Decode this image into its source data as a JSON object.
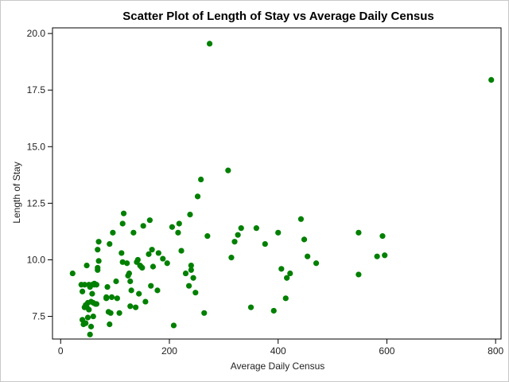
{
  "chart_data": {
    "type": "scatter",
    "title": "Scatter Plot of Length of Stay vs Average Daily Census",
    "xlabel": "Average Daily Census",
    "ylabel": "Length of Stay",
    "xlim": [
      -15,
      810
    ],
    "ylim": [
      6.5,
      20.25
    ],
    "x_ticks": [
      0,
      200,
      400,
      600,
      800
    ],
    "x_tick_labels": [
      "0",
      "200",
      "400",
      "600",
      "800"
    ],
    "y_ticks": [
      7.5,
      10.0,
      12.5,
      15.0,
      17.5,
      20.0
    ],
    "y_tick_labels": [
      "7.5",
      "10.0",
      "12.5",
      "15.0",
      "17.5",
      "20.0"
    ],
    "grid": false,
    "marker_color": "#008000",
    "points": [
      [
        22,
        9.4
      ],
      [
        38,
        8.9
      ],
      [
        40,
        8.6
      ],
      [
        40,
        7.35
      ],
      [
        42,
        7.15
      ],
      [
        44,
        8.9
      ],
      [
        44,
        7.9
      ],
      [
        46,
        8.0
      ],
      [
        46,
        7.2
      ],
      [
        48,
        7.9
      ],
      [
        48,
        9.75
      ],
      [
        50,
        8.1
      ],
      [
        50,
        7.45
      ],
      [
        52,
        8.9
      ],
      [
        52,
        7.8
      ],
      [
        54,
        8.8
      ],
      [
        54,
        6.7
      ],
      [
        56,
        8.15
      ],
      [
        56,
        7.05
      ],
      [
        58,
        8.9
      ],
      [
        58,
        8.5
      ],
      [
        60,
        8.1
      ],
      [
        60,
        7.5
      ],
      [
        62,
        8.95
      ],
      [
        62,
        8.9
      ],
      [
        64,
        8.05
      ],
      [
        66,
        8.9
      ],
      [
        66,
        8.05
      ],
      [
        68,
        9.65
      ],
      [
        68,
        9.55
      ],
      [
        68,
        10.45
      ],
      [
        70,
        9.95
      ],
      [
        70,
        10.8
      ],
      [
        84,
        8.35
      ],
      [
        84,
        8.3
      ],
      [
        86,
        8.8
      ],
      [
        88,
        7.7
      ],
      [
        90,
        10.7
      ],
      [
        90,
        7.15
      ],
      [
        92,
        7.65
      ],
      [
        94,
        8.35
      ],
      [
        96,
        11.2
      ],
      [
        102,
        9.05
      ],
      [
        104,
        8.3
      ],
      [
        108,
        7.65
      ],
      [
        112,
        10.3
      ],
      [
        114,
        9.9
      ],
      [
        114,
        11.6
      ],
      [
        116,
        12.05
      ],
      [
        122,
        9.85
      ],
      [
        124,
        9.3
      ],
      [
        126,
        9.4
      ],
      [
        128,
        9.05
      ],
      [
        128,
        7.95
      ],
      [
        130,
        8.65
      ],
      [
        134,
        11.2
      ],
      [
        138,
        7.9
      ],
      [
        140,
        9.9
      ],
      [
        142,
        10.0
      ],
      [
        144,
        8.5
      ],
      [
        146,
        9.75
      ],
      [
        148,
        9.7
      ],
      [
        150,
        9.65
      ],
      [
        152,
        11.5
      ],
      [
        156,
        8.15
      ],
      [
        162,
        10.25
      ],
      [
        164,
        11.75
      ],
      [
        166,
        8.85
      ],
      [
        168,
        10.45
      ],
      [
        170,
        9.7
      ],
      [
        178,
        8.65
      ],
      [
        180,
        10.3
      ],
      [
        188,
        10.05
      ],
      [
        196,
        9.85
      ],
      [
        205,
        11.45
      ],
      [
        208,
        7.1
      ],
      [
        216,
        11.2
      ],
      [
        218,
        11.6
      ],
      [
        222,
        10.4
      ],
      [
        230,
        9.4
      ],
      [
        236,
        8.85
      ],
      [
        238,
        12.0
      ],
      [
        240,
        9.55
      ],
      [
        240,
        9.75
      ],
      [
        244,
        9.2
      ],
      [
        248,
        8.55
      ],
      [
        252,
        12.8
      ],
      [
        258,
        13.55
      ],
      [
        264,
        7.65
      ],
      [
        270,
        11.05
      ],
      [
        274,
        19.55
      ],
      [
        308,
        13.95
      ],
      [
        314,
        10.1
      ],
      [
        320,
        10.8
      ],
      [
        326,
        11.1
      ],
      [
        332,
        11.4
      ],
      [
        350,
        7.9
      ],
      [
        360,
        11.4
      ],
      [
        376,
        10.7
      ],
      [
        392,
        7.75
      ],
      [
        400,
        11.2
      ],
      [
        406,
        9.6
      ],
      [
        414,
        8.3
      ],
      [
        416,
        9.2
      ],
      [
        422,
        9.4
      ],
      [
        442,
        11.8
      ],
      [
        448,
        10.9
      ],
      [
        454,
        10.15
      ],
      [
        470,
        9.85
      ],
      [
        548,
        11.2
      ],
      [
        548,
        9.35
      ],
      [
        582,
        10.15
      ],
      [
        592,
        11.05
      ],
      [
        596,
        10.2
      ],
      [
        792,
        17.95
      ]
    ]
  }
}
